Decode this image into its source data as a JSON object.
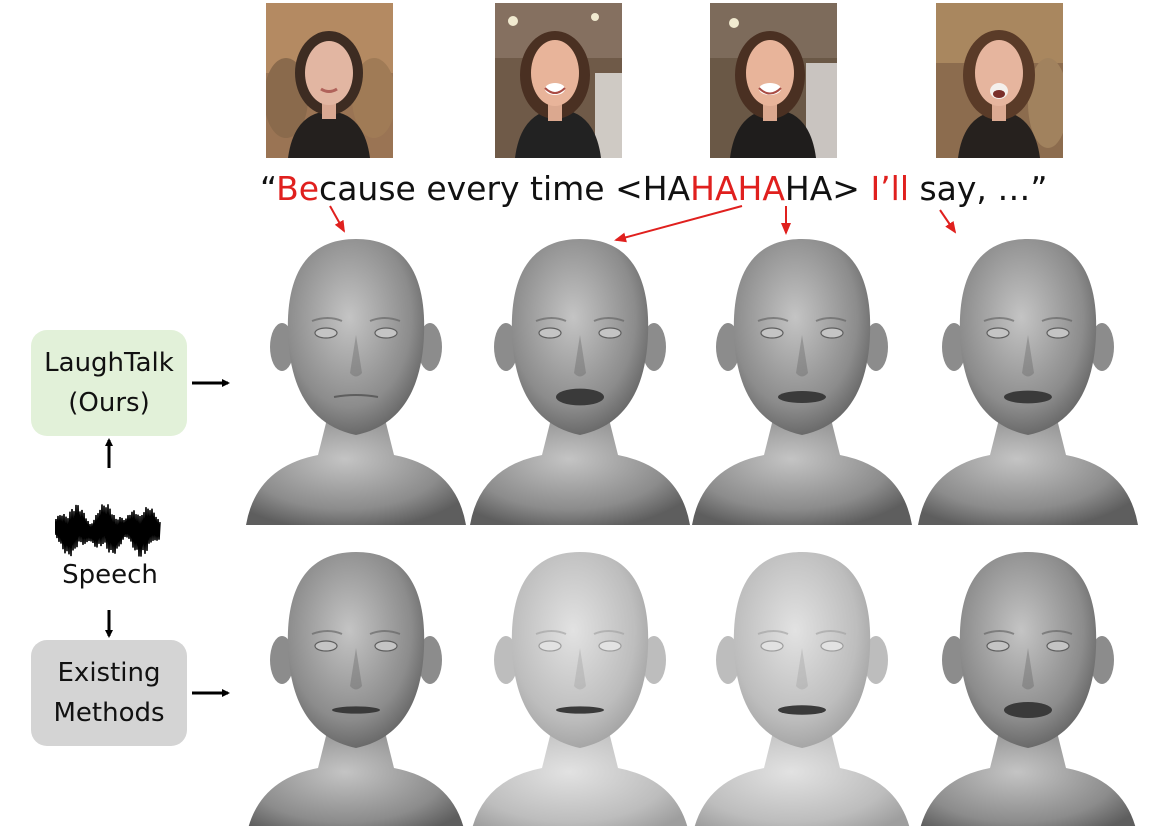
{
  "frames": [
    {
      "id": "frame-1",
      "alt": "speaker-frame-1",
      "mouth": "closed-smile"
    },
    {
      "id": "frame-2",
      "alt": "speaker-frame-2",
      "mouth": "open-laugh"
    },
    {
      "id": "frame-3",
      "alt": "speaker-frame-3",
      "mouth": "open-laugh"
    },
    {
      "id": "frame-4",
      "alt": "speaker-frame-4",
      "mouth": "open-speech"
    }
  ],
  "transcript": {
    "open_quote": "“",
    "be": "Be",
    "cause": "cause every time <HA",
    "haha": "HAHA",
    "ha_close": "HA> ",
    "ill": "I’ll",
    "say": " say, …”"
  },
  "methods": {
    "ours_line1": "LaughTalk",
    "ours_line2": "(Ours)",
    "existing_line1": "Existing",
    "existing_line2": "Methods"
  },
  "speech_label": "Speech",
  "colors": {
    "highlight": "#e0201e",
    "ours_box": "#e2f1d9",
    "existing_box": "#d4d4d4",
    "arrow": "#000000"
  },
  "meshes": {
    "ours": [
      {
        "mouth_open": 0.0,
        "tone": "dark"
      },
      {
        "mouth_open": 0.8,
        "tone": "dark"
      },
      {
        "mouth_open": 0.5,
        "tone": "dark"
      },
      {
        "mouth_open": 0.55,
        "tone": "dark"
      }
    ],
    "existing": [
      {
        "mouth_open": 0.2,
        "tone": "dark"
      },
      {
        "mouth_open": 0.2,
        "tone": "light"
      },
      {
        "mouth_open": 0.35,
        "tone": "light"
      },
      {
        "mouth_open": 0.75,
        "tone": "dark"
      }
    ]
  }
}
